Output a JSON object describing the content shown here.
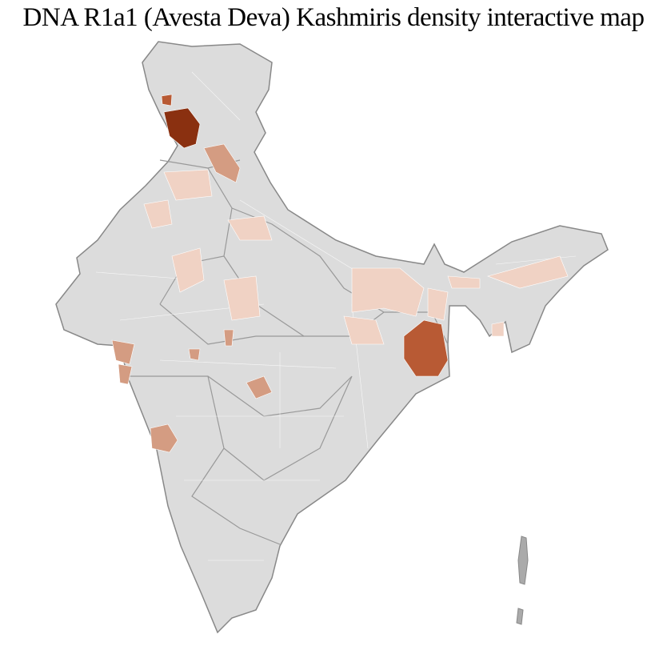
{
  "title": "DNA R1a1 (Avesta Deva) Kashmiris density interactive map",
  "map": {
    "region": "India",
    "base_color": "#dcdcdc",
    "border_color": "#888888",
    "district_border_color": "#ffffff",
    "scale_colors": {
      "low": "#f0d2c4",
      "medium": "#d49c82",
      "high": "#b85a34",
      "very_high": "#8a3010"
    },
    "highlighted_areas": [
      {
        "name": "Kashmir Valley",
        "level": "very_high"
      },
      {
        "name": "Northern Kashmir",
        "level": "high"
      },
      {
        "name": "Himachal Pradesh",
        "level": "medium"
      },
      {
        "name": "Punjab",
        "level": "low"
      },
      {
        "name": "Rajasthan",
        "level": "low"
      },
      {
        "name": "Uttar Pradesh",
        "level": "low"
      },
      {
        "name": "Bihar",
        "level": "low"
      },
      {
        "name": "West Bengal",
        "level": "low"
      },
      {
        "name": "Northeast",
        "level": "low"
      },
      {
        "name": "Odisha",
        "level": "high"
      },
      {
        "name": "Gujarat",
        "level": "medium"
      },
      {
        "name": "Madhya Pradesh",
        "level": "medium"
      },
      {
        "name": "Maharashtra",
        "level": "medium"
      }
    ]
  }
}
